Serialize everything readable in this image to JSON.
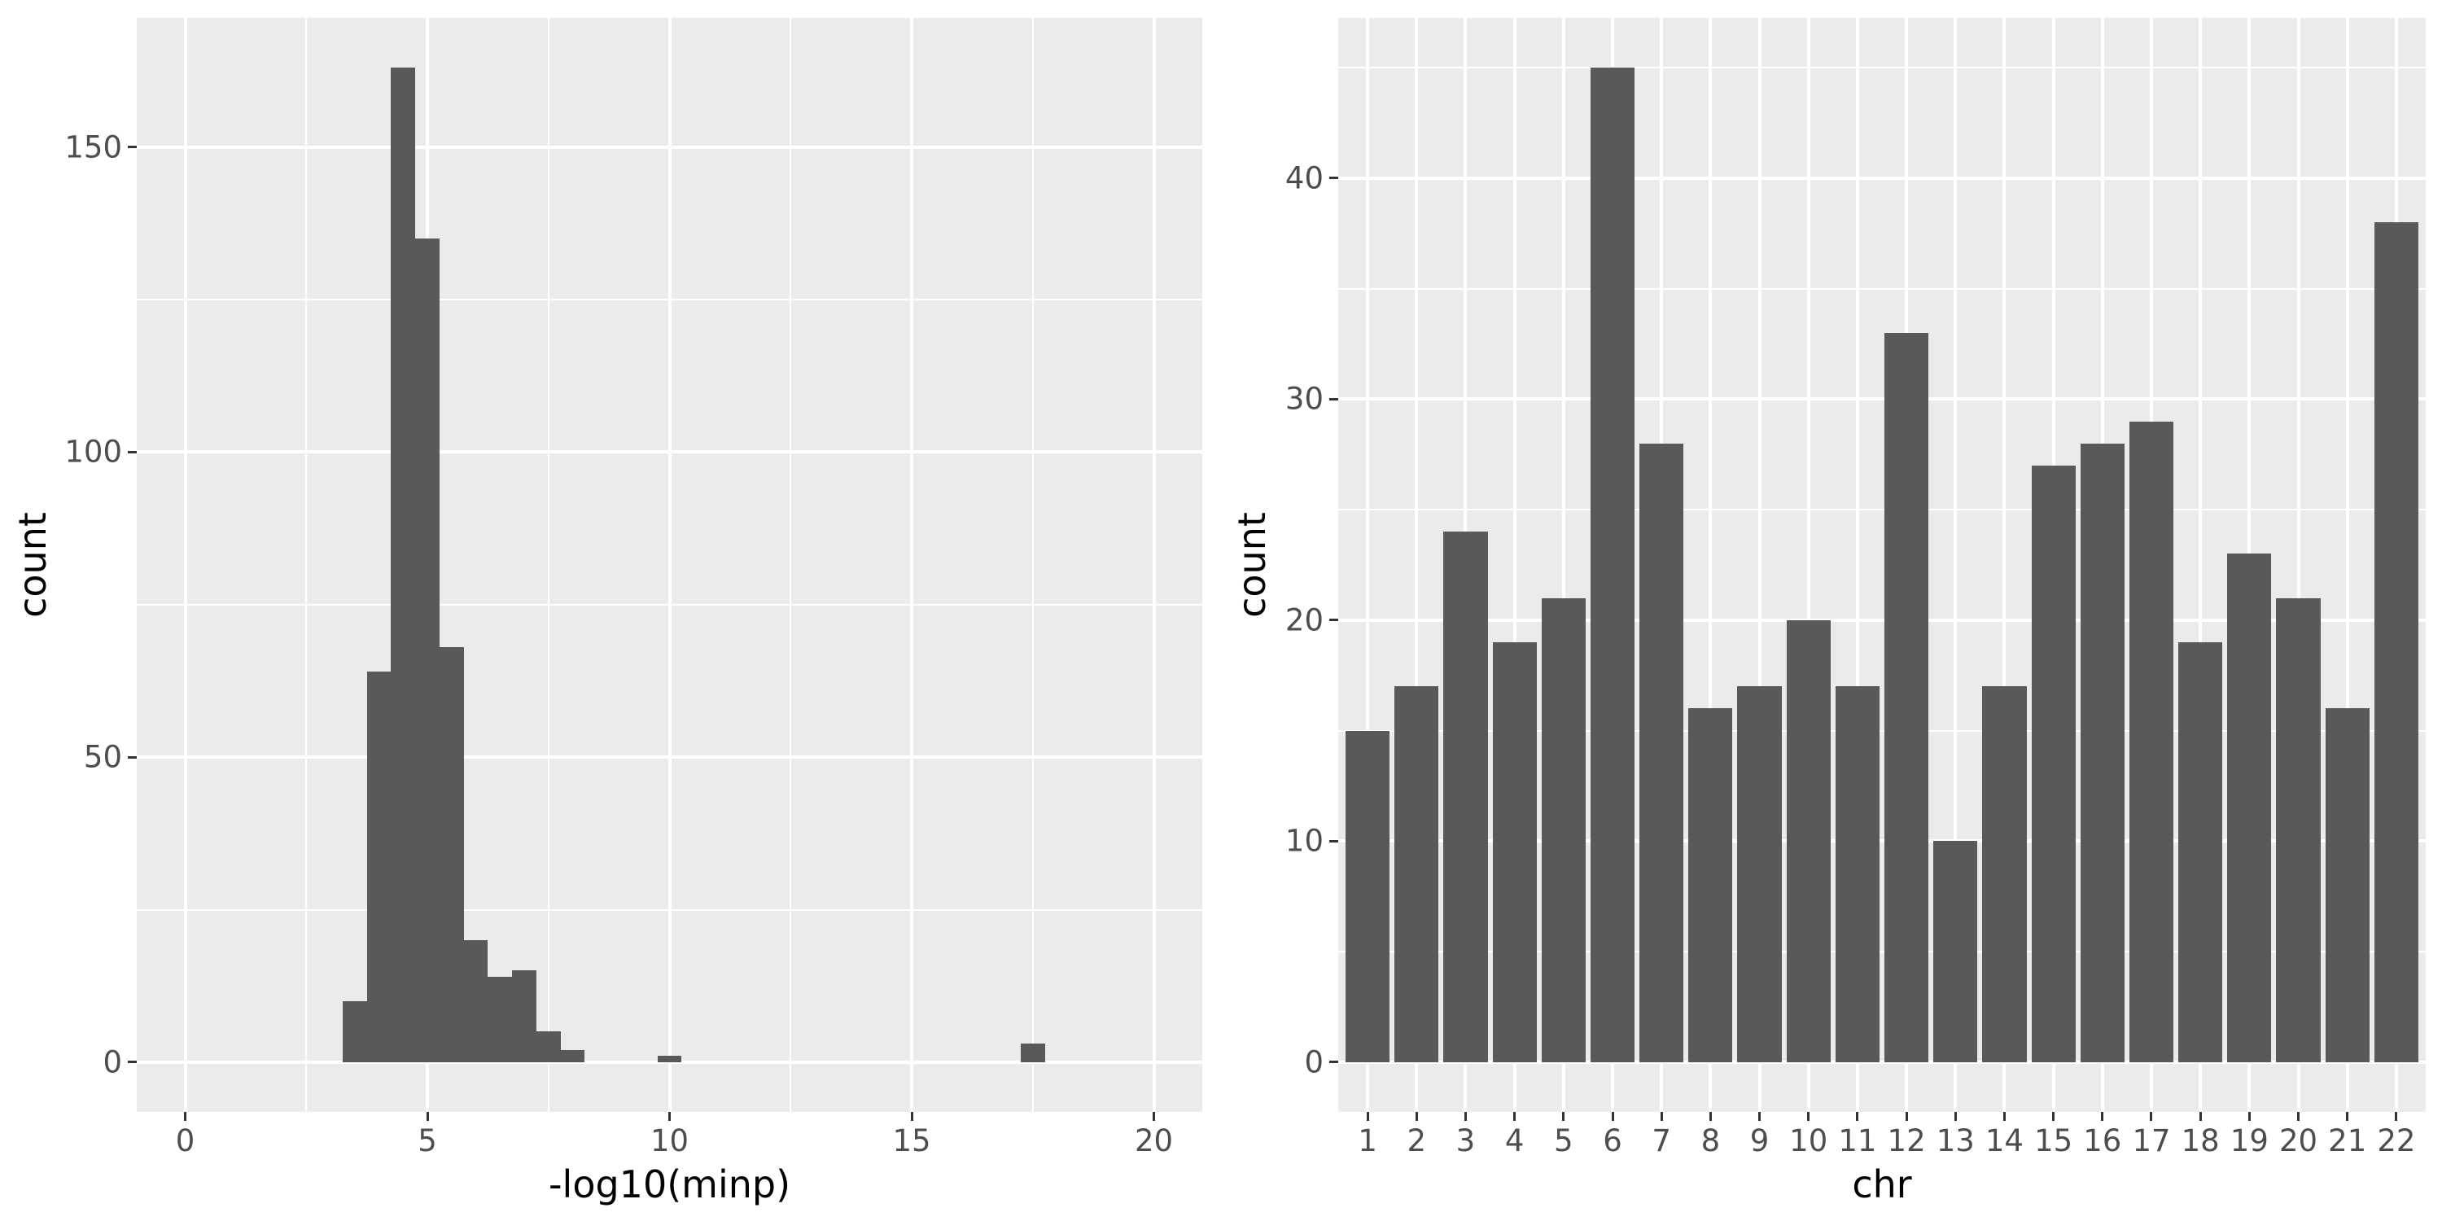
{
  "figure": {
    "background": "#ffffff"
  },
  "colors": {
    "panel_bg": "#ebebeb",
    "bar_fill": "#595959",
    "gridline": "#ffffff",
    "tick_text": "#4d4d4d",
    "axis_title_text": "#000000",
    "tick_mark": "#333333"
  },
  "chart_data": [
    {
      "type": "histogram",
      "xlabel": "-log10(minp)",
      "ylabel": "count",
      "x_ticks": [
        0,
        5,
        10,
        15,
        20
      ],
      "y_ticks": [
        0,
        50,
        100,
        150
      ],
      "x_minor": [
        2.5,
        7.5,
        12.5,
        17.5
      ],
      "y_minor": [
        25,
        75,
        125
      ],
      "xlim": [
        -1,
        21
      ],
      "ylim": [
        -8.15,
        171.15
      ],
      "grid": true,
      "legend": "none",
      "binwidth": 0.5,
      "bins": [
        {
          "center": 3.5,
          "count": 10
        },
        {
          "center": 4.0,
          "count": 64
        },
        {
          "center": 4.5,
          "count": 163
        },
        {
          "center": 5.0,
          "count": 135
        },
        {
          "center": 5.5,
          "count": 68
        },
        {
          "center": 6.0,
          "count": 20
        },
        {
          "center": 6.5,
          "count": 14
        },
        {
          "center": 7.0,
          "count": 15
        },
        {
          "center": 7.5,
          "count": 5
        },
        {
          "center": 8.0,
          "count": 2
        },
        {
          "center": 10.0,
          "count": 1
        },
        {
          "center": 17.5,
          "count": 3
        }
      ]
    },
    {
      "type": "bar",
      "xlabel": "chr",
      "ylabel": "count",
      "categories": [
        "1",
        "2",
        "3",
        "4",
        "5",
        "6",
        "7",
        "8",
        "9",
        "10",
        "11",
        "12",
        "13",
        "14",
        "15",
        "16",
        "17",
        "18",
        "19",
        "20",
        "21",
        "22"
      ],
      "values": [
        15,
        17,
        24,
        19,
        21,
        45,
        28,
        16,
        17,
        20,
        17,
        33,
        10,
        17,
        27,
        28,
        29,
        19,
        23,
        21,
        16,
        38
      ],
      "y_ticks": [
        0,
        10,
        20,
        30,
        40
      ],
      "y_minor": [
        5,
        15,
        25,
        35,
        45
      ],
      "ylim": [
        -2.25,
        47.25
      ],
      "bar_rel_width": 0.9,
      "cat_expand": 0.6,
      "grid": true,
      "legend": "none"
    }
  ]
}
